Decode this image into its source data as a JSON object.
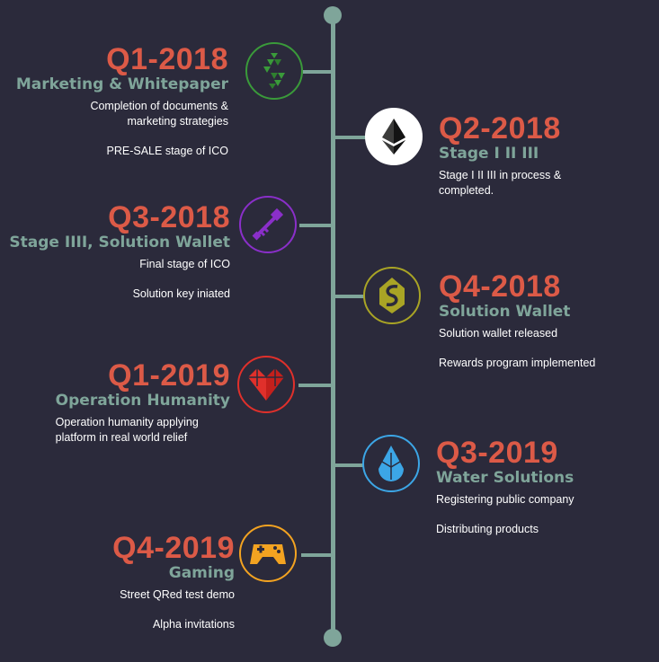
{
  "colors": {
    "background": "#2b2a3b",
    "spine": "#7fa59a",
    "quarter": "#dc5a47",
    "stage": "#7fa59a"
  },
  "milestones": [
    {
      "quarter": "Q1-2018",
      "stage": "Marketing & Whitepaper",
      "lines": [
        "Completion  of documents &",
        "marketing strategies"
      ],
      "extra": "PRE-SALE stage of ICO",
      "icon": "green-blocks-icon",
      "color": "#3a9a3a"
    },
    {
      "quarter": "Q2-2018",
      "stage": "Stage I II III",
      "lines": [
        "Stage I II III in process &",
        "completed."
      ],
      "extra": "",
      "icon": "ethereum-icon",
      "color": "#ffffff"
    },
    {
      "quarter": "Q3-2018",
      "stage": "Stage IIII, Solution Wallet",
      "lines": [
        "Final stage of ICO"
      ],
      "extra": "Solution key iniated",
      "icon": "purple-key-icon",
      "color": "#8a2fc9"
    },
    {
      "quarter": "Q4-2018",
      "stage": "Solution Wallet",
      "lines": [
        "Solution wallet released"
      ],
      "extra": "Rewards program implemented",
      "icon": "olive-wallet-icon",
      "color": "#a9a425"
    },
    {
      "quarter": "Q1-2019",
      "stage": "Operation Humanity",
      "lines": [
        "Operation humanity applying",
        "platform in real world relief"
      ],
      "extra": "",
      "icon": "red-heart-icon",
      "color": "#e0302b"
    },
    {
      "quarter": "Q3-2019",
      "stage": "Water Solutions",
      "lines": [
        "Registering public company"
      ],
      "extra": "Distributing products",
      "icon": "blue-water-drop-icon",
      "color": "#3ca6e6"
    },
    {
      "quarter": "Q4-2019",
      "stage": "Gaming",
      "lines": [
        "Street QRed test demo"
      ],
      "extra": "Alpha invitations",
      "icon": "orange-gamepad-icon",
      "color": "#f3a321"
    }
  ]
}
